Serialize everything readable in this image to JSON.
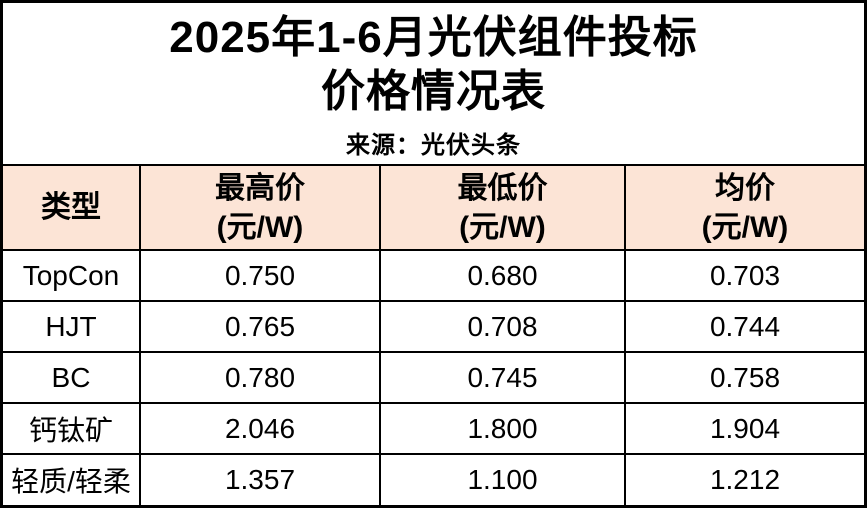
{
  "page": {
    "background_color": "#ffffff",
    "frame_color": "#000000"
  },
  "header": {
    "title_line1": "2025年1-6月光伏组件投标",
    "title_line2": "价格情况表",
    "source": "来源：光伏头条"
  },
  "table": {
    "header_bg_color": "#fce4d6",
    "border_color": "#000000",
    "columns": [
      {
        "label": "类型",
        "unit": ""
      },
      {
        "label": "最高价",
        "unit": "(元/W)"
      },
      {
        "label": "最低价",
        "unit": "(元/W)"
      },
      {
        "label": "均价",
        "unit": "(元/W)"
      }
    ],
    "rows": [
      {
        "type": "TopCon",
        "max": "0.750",
        "min": "0.680",
        "avg": "0.703"
      },
      {
        "type": "HJT",
        "max": "0.765",
        "min": "0.708",
        "avg": "0.744"
      },
      {
        "type": "BC",
        "max": "0.780",
        "min": "0.745",
        "avg": "0.758"
      },
      {
        "type": "钙钛矿",
        "max": "2.046",
        "min": "1.800",
        "avg": "1.904"
      },
      {
        "type": "轻质/轻柔",
        "max": "1.357",
        "min": "1.100",
        "avg": "1.212"
      }
    ]
  },
  "chart_data": {
    "type": "table",
    "title": "2025年1-6月光伏组件投标价格情况表",
    "source": "来源：光伏头条",
    "columns": [
      "类型",
      "最高价 (元/W)",
      "最低价 (元/W)",
      "均价 (元/W)"
    ],
    "rows": [
      [
        "TopCon",
        0.75,
        0.68,
        0.703
      ],
      [
        "HJT",
        0.765,
        0.708,
        0.744
      ],
      [
        "BC",
        0.78,
        0.745,
        0.758
      ],
      [
        "钙钛矿",
        2.046,
        1.8,
        1.904
      ],
      [
        "轻质/轻柔",
        1.357,
        1.1,
        1.212
      ]
    ]
  }
}
